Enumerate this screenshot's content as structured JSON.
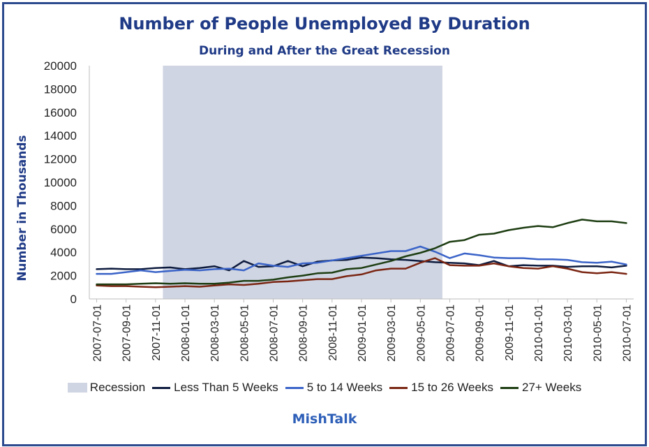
{
  "chart_data": {
    "type": "line",
    "title": "Number of People Unemployed By Duration",
    "subtitle": "During and After the Great Recession",
    "ylabel": "Number in Thousands",
    "ylim": [
      0,
      20000
    ],
    "yticks": [
      0,
      2000,
      4000,
      6000,
      8000,
      10000,
      12000,
      14000,
      16000,
      18000,
      20000
    ],
    "x": [
      "2007-07-01",
      "2007-08-01",
      "2007-09-01",
      "2007-10-01",
      "2007-11-01",
      "2007-12-01",
      "2008-01-01",
      "2008-02-01",
      "2008-03-01",
      "2008-04-01",
      "2008-05-01",
      "2008-06-01",
      "2008-07-01",
      "2008-08-01",
      "2008-09-01",
      "2008-10-01",
      "2008-11-01",
      "2008-12-01",
      "2009-01-01",
      "2009-02-01",
      "2009-03-01",
      "2009-04-01",
      "2009-05-01",
      "2009-06-01",
      "2009-07-01",
      "2009-08-01",
      "2009-09-01",
      "2009-10-01",
      "2009-11-01",
      "2009-12-01",
      "2010-01-01",
      "2010-02-01",
      "2010-03-01",
      "2010-04-01",
      "2010-05-01",
      "2010-06-01",
      "2010-07-01"
    ],
    "xtick_labels": [
      "2007-07-01",
      "2007-09-01",
      "2007-11-01",
      "2008-01-01",
      "2008-03-01",
      "2008-05-01",
      "2008-07-01",
      "2008-09-01",
      "2008-11-01",
      "2009-01-01",
      "2009-03-01",
      "2009-05-01",
      "2009-07-01",
      "2009-09-01",
      "2009-11-01",
      "2010-01-01",
      "2010-03-01",
      "2010-05-01",
      "2010-07-01"
    ],
    "recession": {
      "name": "Recession",
      "start": "2007-12-01",
      "end": "2009-06-01",
      "color": "#cfd5e2"
    },
    "series": [
      {
        "name": "Less Than 5 Weeks",
        "color": "#0d1b3e",
        "values": [
          2550,
          2600,
          2550,
          2550,
          2650,
          2700,
          2550,
          2650,
          2800,
          2450,
          3250,
          2750,
          2800,
          3250,
          2800,
          3200,
          3300,
          3350,
          3550,
          3500,
          3400,
          3350,
          3250,
          3150,
          3100,
          3050,
          2900,
          3250,
          2800,
          2900,
          2850,
          2850,
          2750,
          2800,
          2800,
          2700,
          2850
        ]
      },
      {
        "name": "5 to 14 Weeks",
        "color": "#3a63c8",
        "values": [
          2150,
          2150,
          2300,
          2450,
          2300,
          2400,
          2500,
          2450,
          2550,
          2600,
          2450,
          3050,
          2850,
          2750,
          3050,
          3100,
          3300,
          3500,
          3700,
          3900,
          4100,
          4100,
          4500,
          4050,
          3500,
          3900,
          3750,
          3550,
          3500,
          3500,
          3400,
          3400,
          3350,
          3150,
          3100,
          3200,
          2950
        ]
      },
      {
        "name": "15 to 26 Weeks",
        "color": "#7a2512",
        "values": [
          1150,
          1100,
          1100,
          1050,
          1000,
          1050,
          1100,
          1050,
          1150,
          1250,
          1200,
          1300,
          1450,
          1500,
          1600,
          1700,
          1700,
          1950,
          2100,
          2450,
          2600,
          2600,
          3100,
          3500,
          2900,
          2850,
          2850,
          3050,
          2800,
          2650,
          2600,
          2800,
          2600,
          2300,
          2200,
          2300,
          2150
        ]
      },
      {
        "name": "27+ Weeks",
        "color": "#1d3d12",
        "values": [
          1250,
          1250,
          1250,
          1300,
          1350,
          1300,
          1350,
          1300,
          1300,
          1400,
          1550,
          1550,
          1650,
          1850,
          2000,
          2200,
          2250,
          2550,
          2650,
          2950,
          3250,
          3650,
          3950,
          4350,
          4900,
          5050,
          5500,
          5600,
          5900,
          6100,
          6250,
          6150,
          6500,
          6800,
          6650,
          6650,
          6500
        ]
      }
    ],
    "legend_position": "bottom",
    "grid": false
  },
  "footer": "MishTalk"
}
